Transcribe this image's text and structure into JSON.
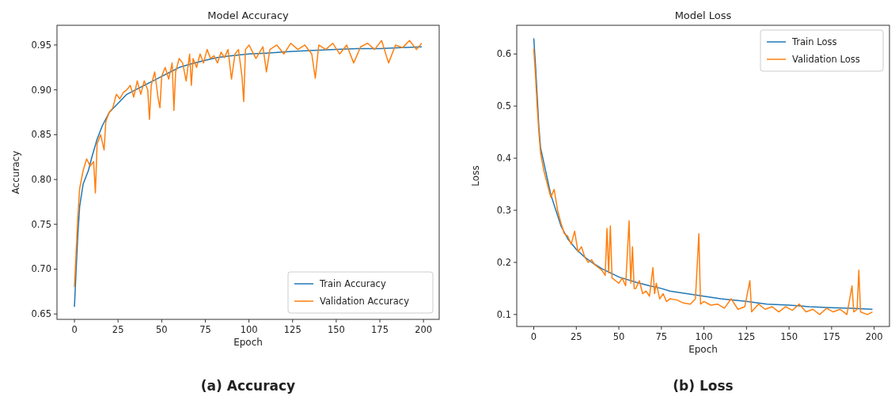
{
  "chart_data": [
    {
      "type": "line",
      "title": "Model Accuracy",
      "xlabel": "Epoch",
      "ylabel": "Accuracy",
      "xlim": [
        -10,
        209
      ],
      "ylim": [
        0.644,
        0.972
      ],
      "xticks": [
        0,
        25,
        50,
        75,
        100,
        125,
        150,
        175,
        200
      ],
      "yticks": [
        {
          "value": 0.65,
          "label": "0.65"
        },
        {
          "value": 0.7,
          "label": "0.70"
        },
        {
          "value": 0.75,
          "label": "0.75"
        },
        {
          "value": 0.8,
          "label": "0.80"
        },
        {
          "value": 0.85,
          "label": "0.85"
        },
        {
          "value": 0.9,
          "label": "0.90"
        },
        {
          "value": 0.95,
          "label": "0.95"
        }
      ],
      "legend": "bottom right",
      "grid": false,
      "annotations": [
        "(a) Accuracy"
      ],
      "series": [
        {
          "name": "Train Accuracy",
          "color": "#1f77b4",
          "x": [
            0,
            1,
            2,
            3,
            5,
            8,
            10,
            13,
            16,
            20,
            25,
            30,
            35,
            40,
            45,
            50,
            55,
            60,
            67,
            75,
            82,
            90,
            100,
            110,
            125,
            137,
            150,
            162,
            175,
            187,
            199
          ],
          "values": [
            0.658,
            0.7,
            0.74,
            0.77,
            0.795,
            0.81,
            0.825,
            0.845,
            0.86,
            0.875,
            0.885,
            0.895,
            0.9,
            0.905,
            0.91,
            0.915,
            0.92,
            0.925,
            0.929,
            0.933,
            0.936,
            0.938,
            0.94,
            0.941,
            0.943,
            0.944,
            0.945,
            0.946,
            0.946,
            0.947,
            0.948
          ]
        },
        {
          "name": "Validation Accuracy",
          "color": "#ff7f0e",
          "x": [
            0,
            1,
            2,
            3,
            5,
            7,
            9,
            11,
            12,
            13,
            15,
            17,
            18,
            20,
            22,
            24,
            26,
            28,
            30,
            32,
            34,
            36,
            38,
            40,
            42,
            43,
            44,
            46,
            48,
            49,
            50,
            52,
            54,
            56,
            57,
            58,
            60,
            62,
            64,
            66,
            67,
            68,
            70,
            72,
            74,
            76,
            78,
            80,
            82,
            84,
            86,
            88,
            90,
            92,
            94,
            96,
            97,
            98,
            100,
            104,
            108,
            110,
            112,
            116,
            120,
            124,
            128,
            132,
            136,
            138,
            140,
            144,
            148,
            152,
            156,
            160,
            164,
            168,
            172,
            176,
            180,
            184,
            188,
            192,
            196,
            199
          ],
          "values": [
            0.68,
            0.72,
            0.76,
            0.79,
            0.81,
            0.823,
            0.815,
            0.82,
            0.785,
            0.84,
            0.85,
            0.833,
            0.865,
            0.875,
            0.88,
            0.895,
            0.89,
            0.897,
            0.9,
            0.905,
            0.892,
            0.91,
            0.895,
            0.91,
            0.9,
            0.867,
            0.905,
            0.92,
            0.89,
            0.88,
            0.915,
            0.925,
            0.912,
            0.93,
            0.877,
            0.92,
            0.935,
            0.93,
            0.91,
            0.94,
            0.905,
            0.935,
            0.925,
            0.94,
            0.93,
            0.945,
            0.935,
            0.938,
            0.93,
            0.942,
            0.936,
            0.945,
            0.912,
            0.94,
            0.945,
            0.915,
            0.887,
            0.945,
            0.95,
            0.935,
            0.948,
            0.92,
            0.945,
            0.95,
            0.94,
            0.952,
            0.945,
            0.95,
            0.94,
            0.913,
            0.95,
            0.945,
            0.952,
            0.94,
            0.95,
            0.93,
            0.948,
            0.952,
            0.945,
            0.955,
            0.93,
            0.95,
            0.947,
            0.955,
            0.945,
            0.952
          ]
        }
      ]
    },
    {
      "type": "line",
      "title": "Model Loss",
      "xlabel": "Epoch",
      "ylabel": "Loss",
      "xlim": [
        -10,
        209
      ],
      "ylim": [
        0.077,
        0.655
      ],
      "xticks": [
        0,
        25,
        50,
        75,
        100,
        125,
        150,
        175,
        200
      ],
      "yticks": [
        0.1,
        0.2,
        0.3,
        0.4,
        0.5,
        0.6
      ],
      "legend": "top right",
      "grid": false,
      "annotations": [
        "(b) Loss"
      ],
      "series": [
        {
          "name": "Train Loss",
          "color": "#1f77b4",
          "x": [
            0,
            1,
            2,
            3,
            4,
            6,
            8,
            10,
            13,
            16,
            20,
            25,
            30,
            35,
            40,
            45,
            50,
            60,
            68,
            75,
            80,
            90,
            100,
            110,
            125,
            137,
            150,
            162,
            175,
            187,
            199
          ],
          "values": [
            0.63,
            0.58,
            0.52,
            0.46,
            0.42,
            0.39,
            0.36,
            0.33,
            0.3,
            0.27,
            0.245,
            0.225,
            0.21,
            0.198,
            0.188,
            0.18,
            0.172,
            0.162,
            0.155,
            0.15,
            0.145,
            0.14,
            0.135,
            0.13,
            0.125,
            0.12,
            0.118,
            0.115,
            0.113,
            0.112,
            0.11
          ]
        },
        {
          "name": "Validation Loss",
          "color": "#ff7f0e",
          "x": [
            0,
            1,
            2,
            3,
            4,
            6,
            8,
            10,
            12,
            13,
            14,
            16,
            18,
            20,
            22,
            24,
            26,
            28,
            30,
            32,
            34,
            36,
            38,
            40,
            42,
            43,
            44,
            45,
            46,
            48,
            50,
            52,
            54,
            56,
            57,
            58,
            59,
            60,
            62,
            64,
            66,
            68,
            70,
            71,
            72,
            74,
            76,
            78,
            80,
            84,
            88,
            92,
            95,
            97,
            98,
            100,
            104,
            108,
            112,
            116,
            120,
            124,
            127,
            128,
            132,
            136,
            140,
            144,
            148,
            152,
            156,
            160,
            164,
            168,
            172,
            176,
            180,
            184,
            187,
            188,
            190,
            191,
            192,
            196,
            199
          ],
          "values": [
            0.61,
            0.56,
            0.5,
            0.45,
            0.41,
            0.375,
            0.35,
            0.325,
            0.34,
            0.32,
            0.3,
            0.275,
            0.255,
            0.25,
            0.235,
            0.26,
            0.22,
            0.23,
            0.21,
            0.2,
            0.205,
            0.195,
            0.19,
            0.185,
            0.175,
            0.265,
            0.18,
            0.27,
            0.17,
            0.165,
            0.16,
            0.17,
            0.155,
            0.28,
            0.16,
            0.23,
            0.15,
            0.15,
            0.165,
            0.14,
            0.145,
            0.135,
            0.19,
            0.14,
            0.16,
            0.13,
            0.14,
            0.125,
            0.13,
            0.128,
            0.122,
            0.12,
            0.13,
            0.255,
            0.12,
            0.125,
            0.118,
            0.12,
            0.112,
            0.13,
            0.11,
            0.115,
            0.165,
            0.105,
            0.12,
            0.11,
            0.115,
            0.105,
            0.115,
            0.108,
            0.12,
            0.105,
            0.11,
            0.1,
            0.112,
            0.105,
            0.11,
            0.1,
            0.155,
            0.105,
            0.11,
            0.185,
            0.105,
            0.1,
            0.105
          ]
        }
      ]
    }
  ]
}
